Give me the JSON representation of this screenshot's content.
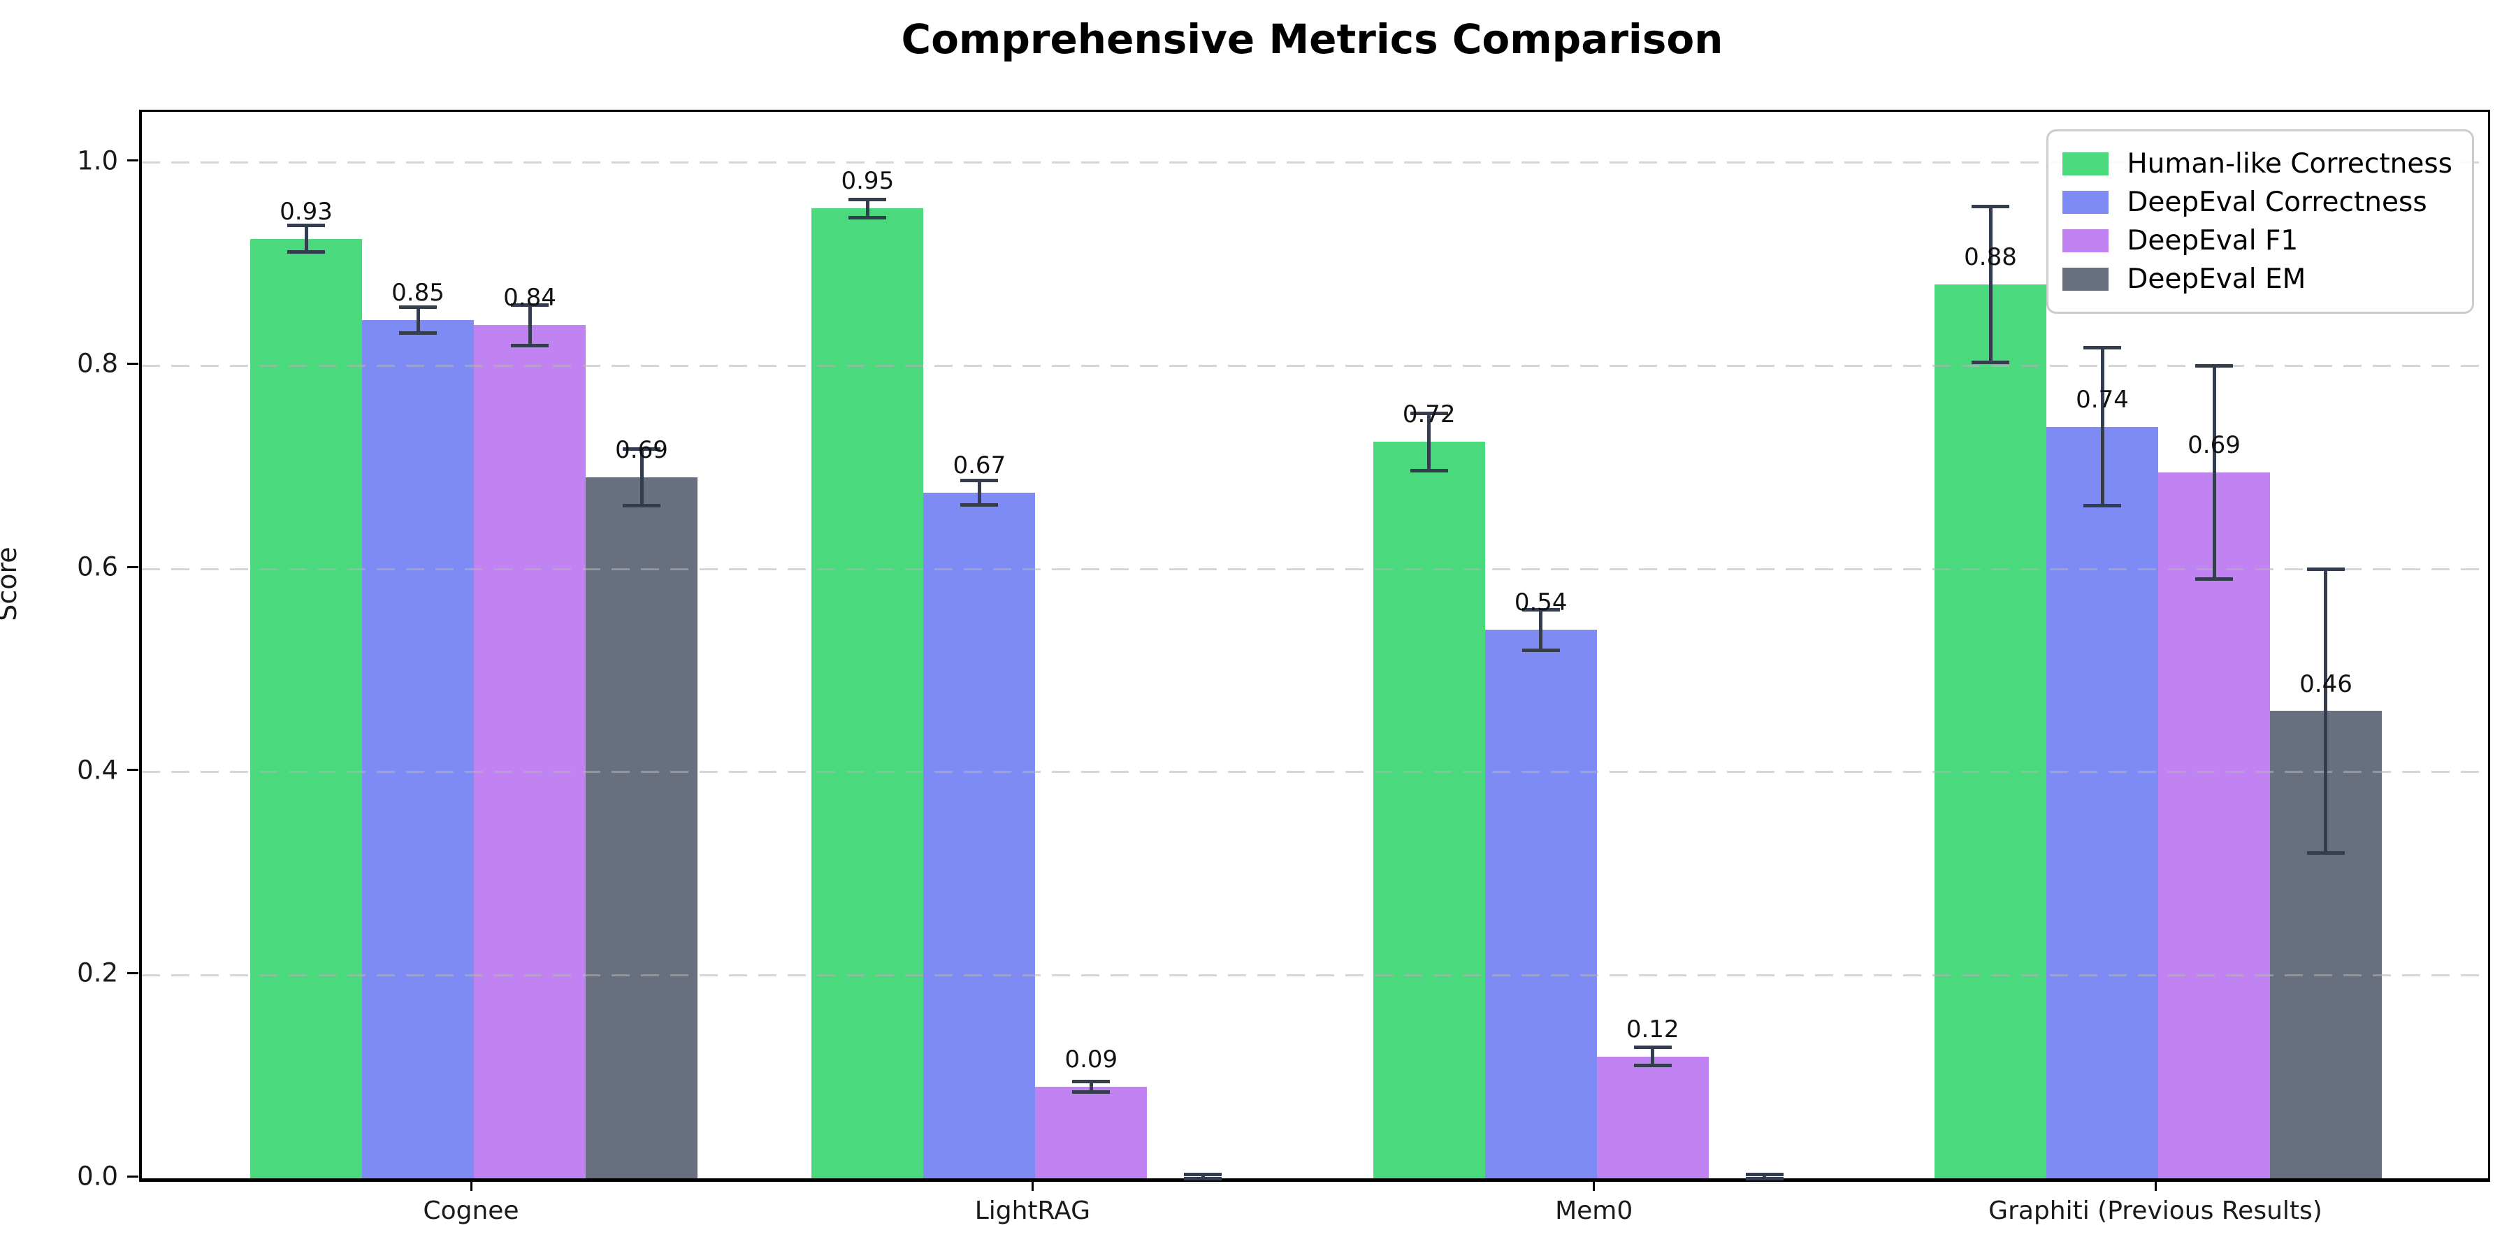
{
  "title": "Comprehensive Metrics Comparison",
  "chart_data": {
    "type": "bar",
    "title": "Comprehensive Metrics Comparison",
    "ylabel": "Score",
    "xlabel": "",
    "ylim": [
      0,
      1.05
    ],
    "yticks": [
      0.0,
      0.2,
      0.4,
      0.6,
      0.8,
      1.0
    ],
    "ytick_labels": [
      "0.0",
      "0.2",
      "0.4",
      "0.6",
      "0.8",
      "1.0"
    ],
    "grid": "horizontal dashed gray",
    "legend_position": "upper right",
    "categories": [
      "Cognee",
      "LightRAG",
      "Mem0",
      "Graphiti (Previous Results)"
    ],
    "group_centers_frac": [
      0.1415,
      0.3808,
      0.6201,
      0.8594
    ],
    "bar_width_frac": 0.04766,
    "error_bar_color": "#333d4d",
    "series": [
      {
        "name": "Human-like Correctness",
        "color": "#4bd97e",
        "values": [
          0.925,
          0.955,
          0.725,
          0.88
        ],
        "labels": [
          "0.93",
          "0.95",
          "0.72",
          "0.88"
        ],
        "errors": [
          0.013,
          0.009,
          0.028,
          0.077
        ]
      },
      {
        "name": "DeepEval Correctness",
        "color": "#7e8bf5",
        "values": [
          0.845,
          0.675,
          0.54,
          0.74
        ],
        "labels": [
          "0.85",
          "0.67",
          "0.54",
          "0.74"
        ],
        "errors": [
          0.013,
          0.012,
          0.02,
          0.078
        ]
      },
      {
        "name": "DeepEval F1",
        "color": "#c183f2",
        "values": [
          0.84,
          0.09,
          0.12,
          0.695
        ],
        "labels": [
          "0.84",
          "0.09",
          "0.12",
          "0.69"
        ],
        "errors": [
          0.02,
          0.005,
          0.009,
          0.105
        ]
      },
      {
        "name": "DeepEval EM",
        "color": "#68707f",
        "values": [
          0.69,
          0.0,
          0.0,
          0.46
        ],
        "labels": [
          "0.69",
          "",
          "",
          "0.46"
        ],
        "errors": [
          0.028,
          0.004,
          0.004,
          0.14
        ]
      }
    ]
  }
}
